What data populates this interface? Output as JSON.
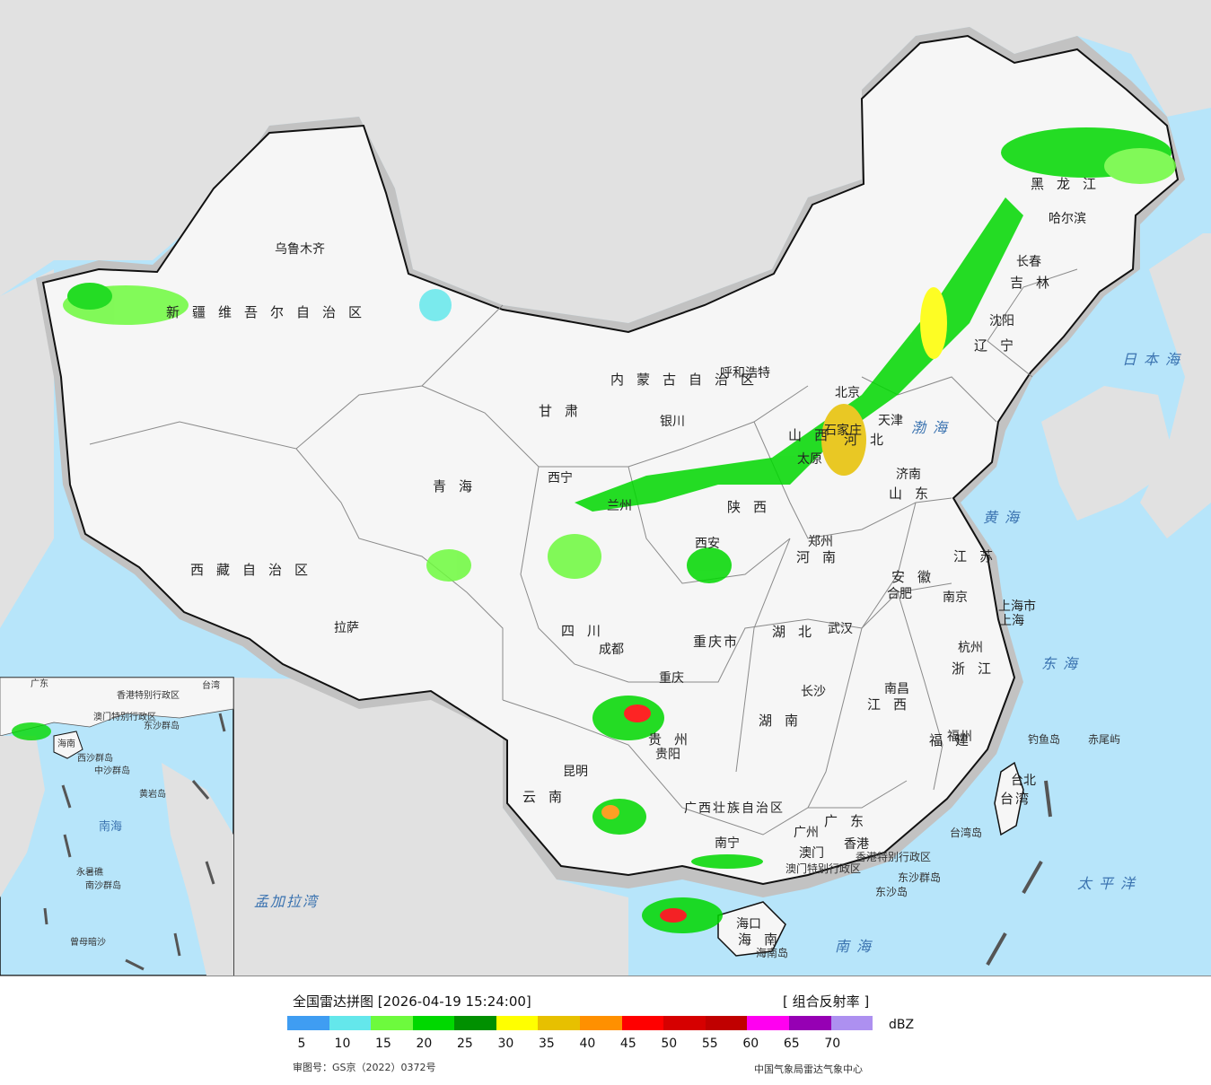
{
  "map": {
    "provinces": [
      {
        "name": "新疆维吾尔自治区"
      },
      {
        "name": "西藏自治区"
      },
      {
        "name": "青海"
      },
      {
        "name": "甘肃"
      },
      {
        "name": "四川"
      },
      {
        "name": "云南"
      },
      {
        "name": "贵州"
      },
      {
        "name": "广西壮族自治区"
      },
      {
        "name": "广东"
      },
      {
        "name": "湖南"
      },
      {
        "name": "湖北"
      },
      {
        "name": "河南"
      },
      {
        "name": "山东"
      },
      {
        "name": "江苏"
      },
      {
        "name": "安徽"
      },
      {
        "name": "浙江"
      },
      {
        "name": "江西"
      },
      {
        "name": "福建"
      },
      {
        "name": "陕西"
      },
      {
        "name": "山西"
      },
      {
        "name": "河北"
      },
      {
        "name": "内蒙古自治区"
      },
      {
        "name": "辽宁"
      },
      {
        "name": "吉林"
      },
      {
        "name": "黑龙江"
      },
      {
        "name": "重庆市"
      },
      {
        "name": "上海市"
      },
      {
        "name": "海南"
      },
      {
        "name": "台湾"
      }
    ],
    "cities": [
      {
        "name": "乌鲁木齐"
      },
      {
        "name": "拉萨"
      },
      {
        "name": "西宁"
      },
      {
        "name": "兰州"
      },
      {
        "name": "银川"
      },
      {
        "name": "呼和浩特"
      },
      {
        "name": "西安"
      },
      {
        "name": "成都"
      },
      {
        "name": "重庆"
      },
      {
        "name": "贵阳"
      },
      {
        "name": "昆明"
      },
      {
        "name": "南宁"
      },
      {
        "name": "广州"
      },
      {
        "name": "澳门"
      },
      {
        "name": "香港"
      },
      {
        "name": "海口"
      },
      {
        "name": "长沙"
      },
      {
        "name": "武汉"
      },
      {
        "name": "郑州"
      },
      {
        "name": "南昌"
      },
      {
        "name": "合肥"
      },
      {
        "name": "南京"
      },
      {
        "name": "杭州"
      },
      {
        "name": "上海"
      },
      {
        "name": "福州"
      },
      {
        "name": "台北"
      },
      {
        "name": "济南"
      },
      {
        "name": "太原"
      },
      {
        "name": "石家庄"
      },
      {
        "name": "北京"
      },
      {
        "name": "天津"
      },
      {
        "name": "沈阳"
      },
      {
        "name": "长春"
      },
      {
        "name": "哈尔滨"
      }
    ],
    "seas": [
      {
        "name": "日本海"
      },
      {
        "name": "渤海"
      },
      {
        "name": "黄海"
      },
      {
        "name": "东海"
      },
      {
        "name": "太平洋"
      },
      {
        "name": "南海"
      },
      {
        "name": "孟加拉湾"
      }
    ],
    "islands": [
      {
        "name": "钓鱼岛"
      },
      {
        "name": "赤尾屿"
      },
      {
        "name": "台湾岛"
      },
      {
        "name": "东沙群岛"
      },
      {
        "name": "东沙岛"
      },
      {
        "name": "海南岛"
      },
      {
        "name": "香港特别行政区"
      },
      {
        "name": "澳门特别行政区"
      }
    ],
    "inset": {
      "labels": [
        "广东",
        "香港特别行政区",
        "澳门特别行政区",
        "东沙群岛",
        "海南",
        "西沙群岛",
        "中沙群岛",
        "黄岩岛",
        "南海",
        "永暑礁",
        "南沙群岛",
        "曾母暗沙",
        "台湾"
      ]
    },
    "colors": {
      "ocean": "#b7e5fa",
      "land_outside": "#e1e1e1",
      "china": "#f6f6f6",
      "halo": "#c2c2c2",
      "border": "#111111"
    }
  },
  "legend": {
    "title": "全国雷达拼图 [2026-04-19 15:24:00]",
    "product": "[ 组合反射率 ]",
    "unit": "dBZ",
    "approval": "审图号：GS京（2022）0372号",
    "credit": "中国气象局雷达气象中心",
    "colors": [
      "#3f9df2",
      "#64e7eb",
      "#6dfa3d",
      "#00d800",
      "#019001",
      "#ffff00",
      "#e7c000",
      "#ff9000",
      "#ff0000",
      "#d60000",
      "#c00000",
      "#ff00f0",
      "#9600b4",
      "#ad90f0"
    ],
    "ticks": [
      "5",
      "10",
      "15",
      "20",
      "25",
      "30",
      "35",
      "40",
      "45",
      "50",
      "55",
      "60",
      "65",
      "70"
    ]
  }
}
